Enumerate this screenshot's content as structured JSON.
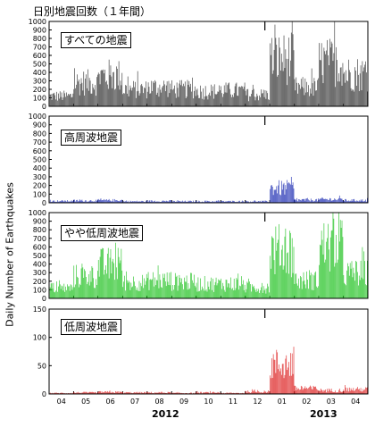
{
  "figure": {
    "title": "日別地震回数（１年間）",
    "ylabel": "Daily Number of Earthquakes",
    "month_ticks": [
      "04",
      "05",
      "06",
      "07",
      "08",
      "09",
      "10",
      "11",
      "12",
      "01",
      "02",
      "03",
      "04"
    ],
    "years": [
      "2012",
      "2013"
    ]
  },
  "chart_data": [
    {
      "type": "bar",
      "label": "すべての地震",
      "color": "#333333",
      "ylim": [
        0,
        1000
      ],
      "yticks": [
        0,
        100,
        200,
        300,
        400,
        500,
        600,
        700,
        800,
        900,
        1000
      ],
      "x_months": [
        "2012-04",
        "2012-05",
        "2012-06",
        "2012-07",
        "2012-08",
        "2012-09",
        "2012-10",
        "2012-11",
        "2012-12",
        "2013-01",
        "2013-02",
        "2013-03",
        "2013-04"
      ],
      "values": [
        150,
        350,
        450,
        250,
        280,
        250,
        220,
        230,
        170,
        700,
        280,
        650,
        480
      ]
    },
    {
      "type": "bar",
      "label": "高周波地震",
      "color": "#1f2fb3",
      "ylim": [
        0,
        1000
      ],
      "yticks": [
        0,
        100,
        200,
        300,
        400,
        500,
        600,
        700,
        800,
        900,
        1000
      ],
      "x_months": [
        "2012-04",
        "2012-05",
        "2012-06",
        "2012-07",
        "2012-08",
        "2012-09",
        "2012-10",
        "2012-11",
        "2012-12",
        "2013-01",
        "2013-02",
        "2013-03",
        "2013-04"
      ],
      "values": [
        25,
        30,
        35,
        20,
        25,
        20,
        20,
        20,
        20,
        210,
        40,
        50,
        35
      ]
    },
    {
      "type": "bar",
      "label": "やや低周波地震",
      "color": "#22c222",
      "ylim": [
        0,
        1000
      ],
      "yticks": [
        0,
        100,
        200,
        300,
        400,
        500,
        600,
        700,
        800,
        900,
        1000
      ],
      "x_months": [
        "2012-04",
        "2012-05",
        "2012-06",
        "2012-07",
        "2012-08",
        "2012-09",
        "2012-10",
        "2012-11",
        "2012-12",
        "2013-01",
        "2013-02",
        "2013-03",
        "2013-04"
      ],
      "values": [
        150,
        320,
        480,
        230,
        260,
        240,
        210,
        210,
        160,
        700,
        260,
        750,
        360
      ]
    },
    {
      "type": "bar",
      "label": "低周波地震",
      "color": "#dd2222",
      "ylim": [
        0,
        150
      ],
      "yticks": [
        0,
        50,
        100,
        150
      ],
      "x_months": [
        "2012-04",
        "2012-05",
        "2012-06",
        "2012-07",
        "2012-08",
        "2012-09",
        "2012-10",
        "2012-11",
        "2012-12",
        "2013-01",
        "2013-02",
        "2013-03",
        "2013-04"
      ],
      "values": [
        2,
        3,
        4,
        3,
        3,
        2,
        3,
        2,
        5,
        65,
        12,
        8,
        10
      ]
    }
  ]
}
